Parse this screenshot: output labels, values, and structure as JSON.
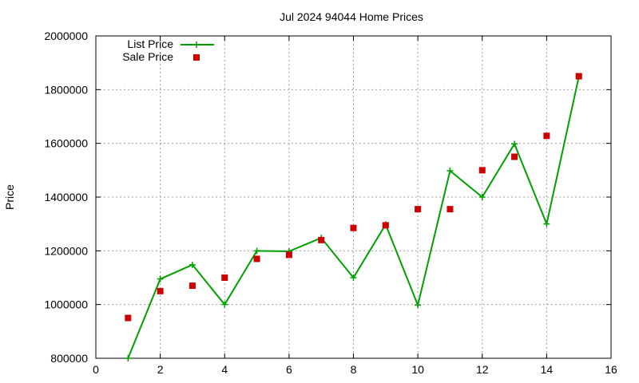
{
  "colors": {
    "list_price": "#00a000",
    "sale_price": "#cc0000"
  },
  "chart_data": {
    "type": "line",
    "title": "Jul 2024 94044 Home Prices",
    "xlabel": "",
    "ylabel": "Price",
    "xlim": [
      0,
      16
    ],
    "ylim": [
      800000,
      2000000
    ],
    "x_ticks": [
      0,
      2,
      4,
      6,
      8,
      10,
      12,
      14,
      16
    ],
    "y_ticks": [
      800000,
      1000000,
      1200000,
      1400000,
      1600000,
      1800000,
      2000000
    ],
    "grid": true,
    "legend_position": "top-left",
    "series": [
      {
        "name": "List Price",
        "style": "line-with-plus-markers",
        "x": [
          1,
          2,
          3,
          4,
          5,
          6,
          7,
          8,
          9,
          10,
          11,
          12,
          13,
          14,
          15
        ],
        "values": [
          800000,
          1095000,
          1148000,
          1000000,
          1200000,
          1198000,
          1248000,
          1100000,
          1298000,
          998000,
          1498000,
          1400000,
          1598000,
          1300000,
          1848000
        ]
      },
      {
        "name": "Sale Price",
        "style": "square-markers",
        "x": [
          1,
          2,
          3,
          4,
          5,
          6,
          7,
          8,
          9,
          10,
          11,
          12,
          13,
          14,
          15
        ],
        "values": [
          950000,
          1050000,
          1070000,
          1100000,
          1170000,
          1185000,
          1240000,
          1285000,
          1295000,
          1355000,
          1355000,
          1500000,
          1550000,
          1628000,
          1850000
        ]
      }
    ]
  }
}
